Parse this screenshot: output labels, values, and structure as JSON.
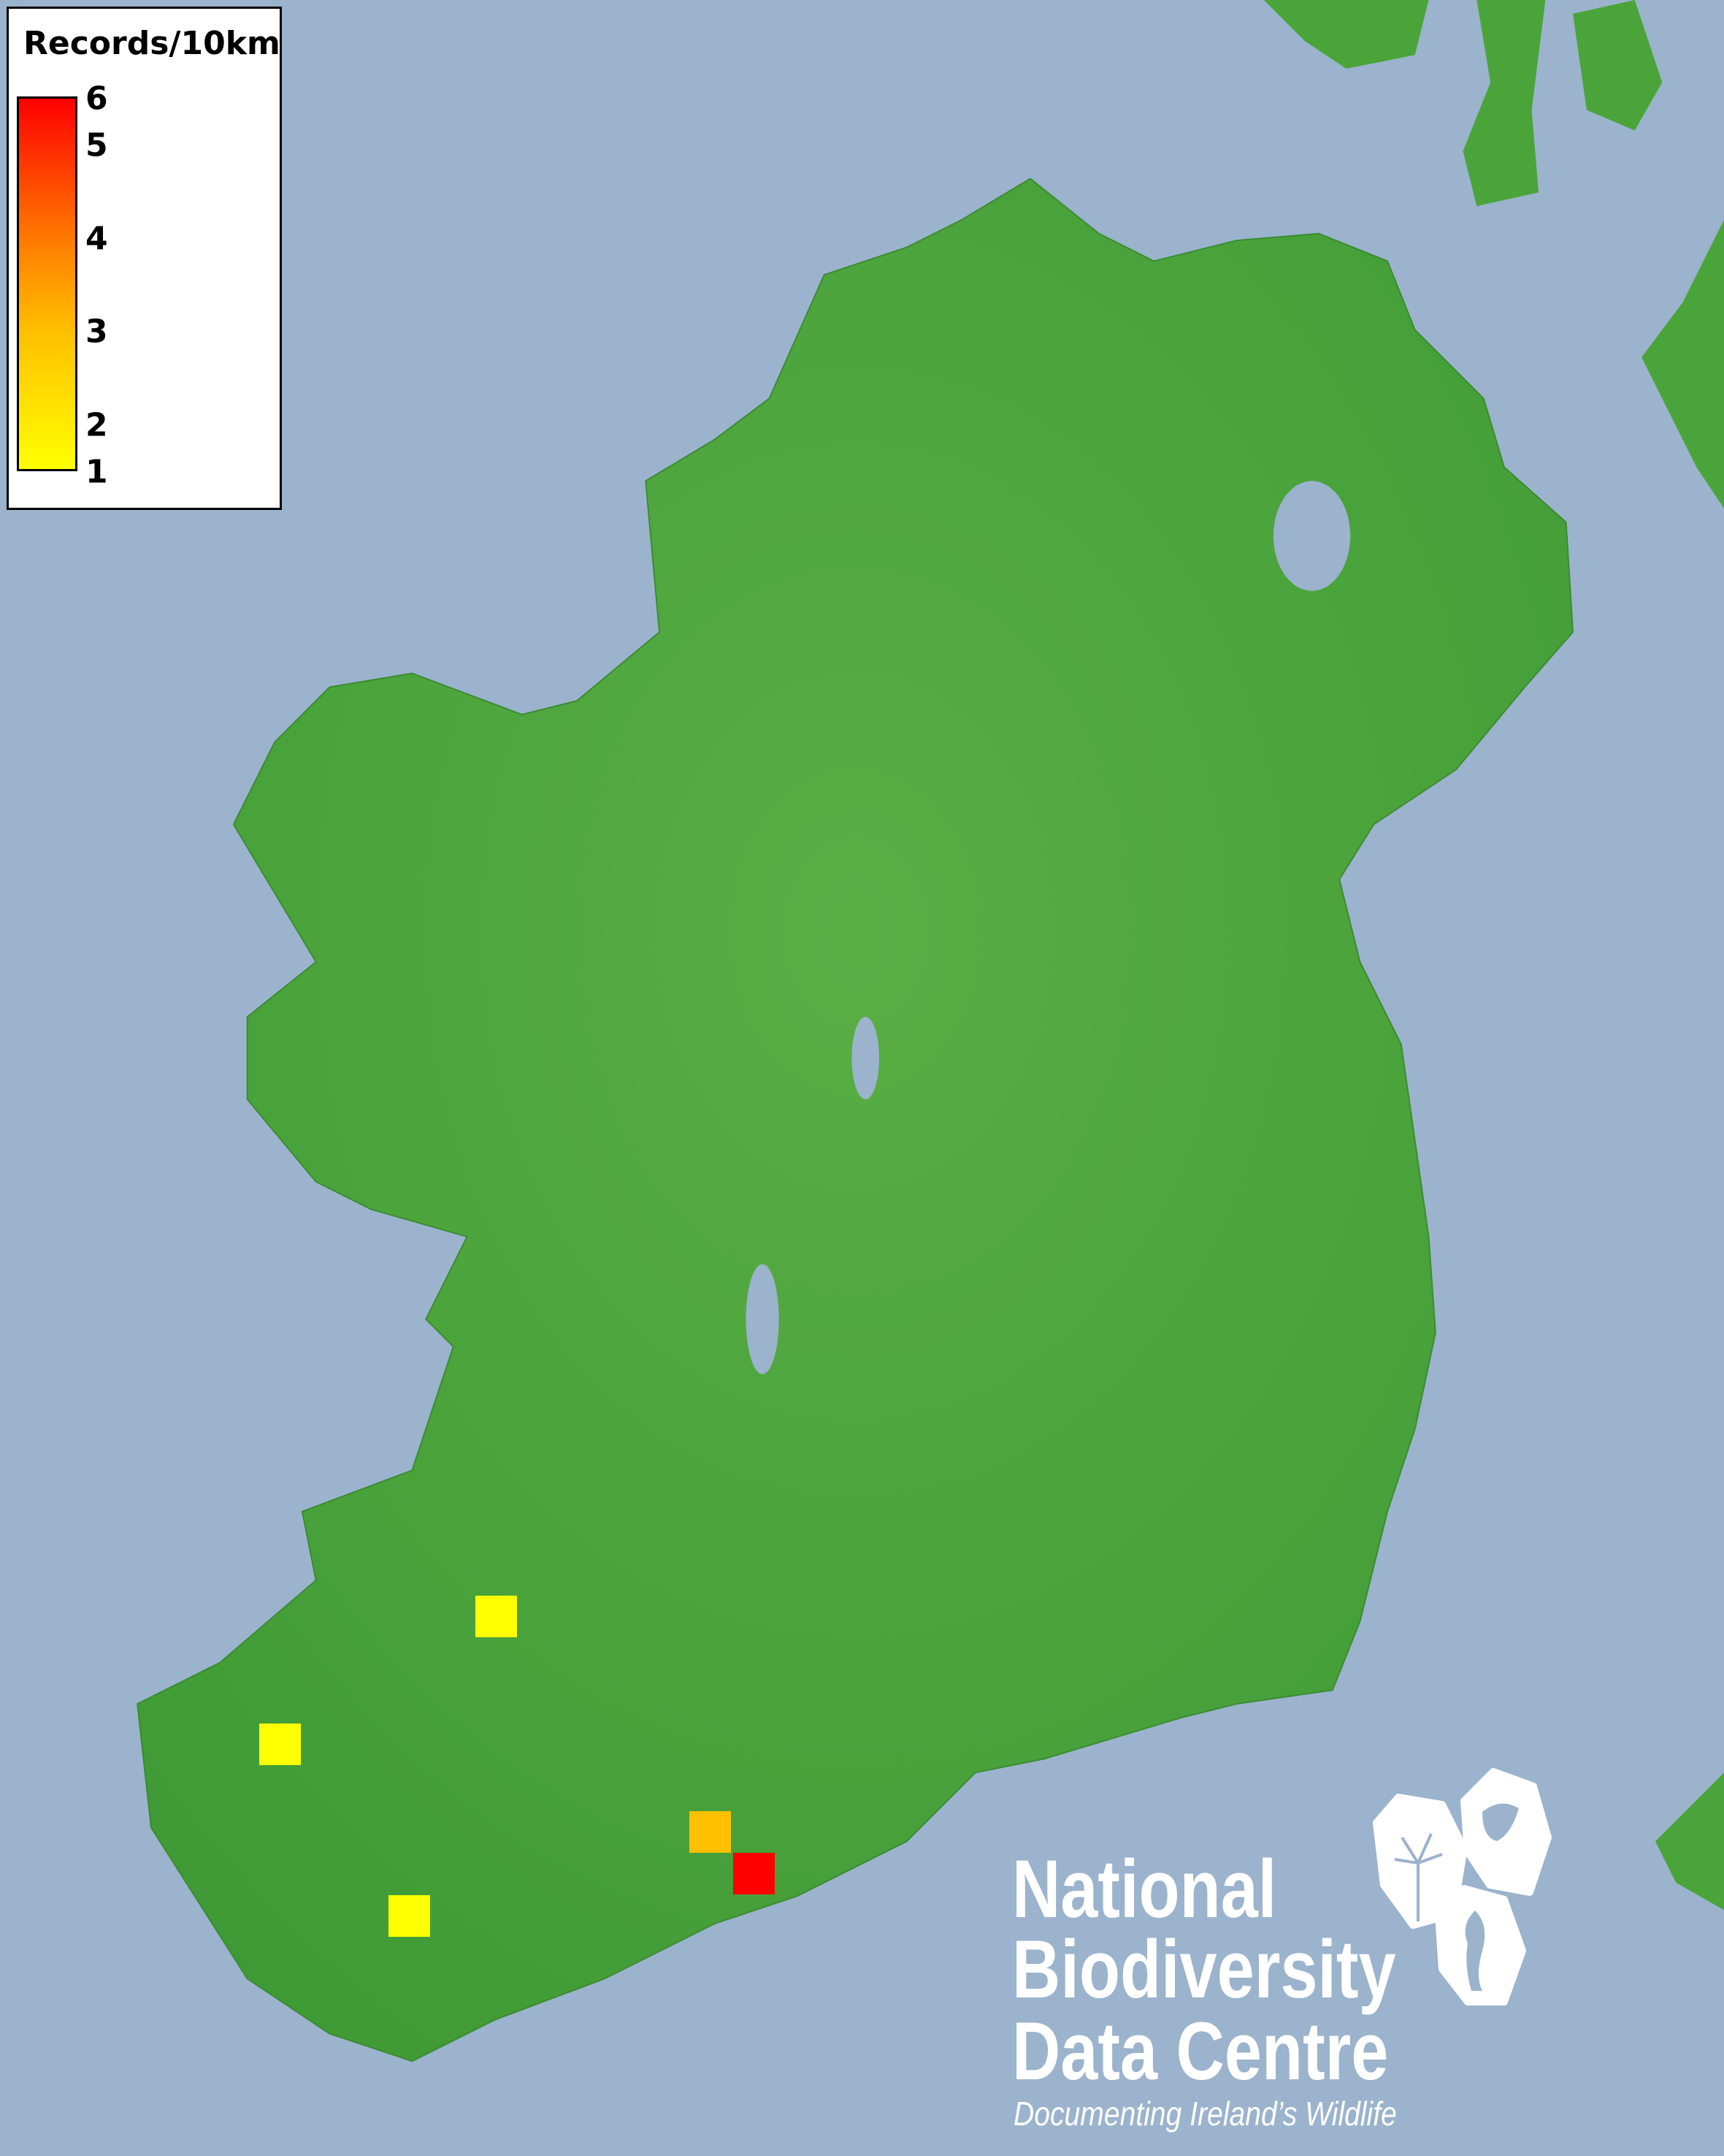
{
  "legend": {
    "title": "Records/10km",
    "labels": [
      "6",
      "5",
      "4",
      "3",
      "2",
      "1"
    ],
    "min": 1,
    "max": 6,
    "colors": {
      "low": "#ffff00",
      "mid": "#ffc000",
      "high": "#ff0000"
    }
  },
  "map": {
    "sea_color": "#9bb3cc",
    "land_color": "#4aa43a",
    "records": [
      {
        "count": 1,
        "color": "#ffff00"
      },
      {
        "count": 1,
        "color": "#ffff00"
      },
      {
        "count": 1,
        "color": "#ffff00"
      },
      {
        "count": 3,
        "color": "#ffc000"
      },
      {
        "count": 6,
        "color": "#ff0000"
      }
    ]
  },
  "logo": {
    "line1": "National",
    "line2": "Biodiversity",
    "line3": "Data Centre",
    "tagline": "Documenting Ireland’s Wildlife",
    "icons": [
      "tree-icon",
      "butterfly-icon",
      "seahorse-icon"
    ]
  }
}
